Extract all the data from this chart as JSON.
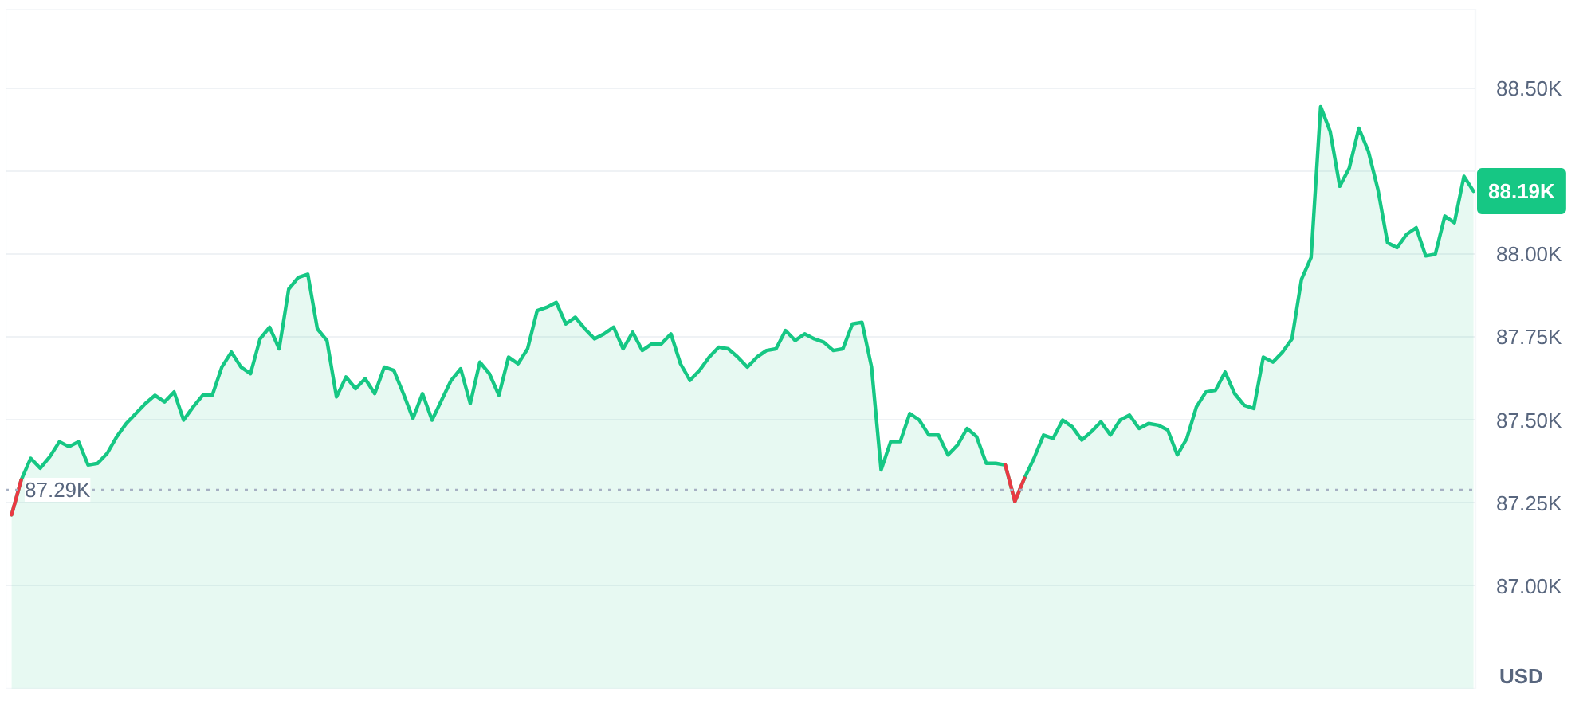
{
  "chart_data": {
    "type": "area",
    "categories": [
      null,
      null,
      null,
      null,
      null,
      null,
      null,
      null,
      null,
      null,
      null,
      null,
      null,
      null,
      null,
      null,
      null,
      null,
      null,
      null,
      null,
      null,
      null,
      null,
      null,
      null,
      null,
      null,
      null,
      null,
      null,
      null,
      null,
      null,
      null,
      null,
      null,
      null,
      null,
      null,
      null,
      null,
      null,
      null,
      null,
      null,
      null,
      null,
      null,
      null,
      null,
      null,
      null,
      null,
      null,
      null,
      null,
      null,
      null,
      null,
      null,
      null,
      null,
      null,
      null,
      null,
      null,
      null,
      null,
      null,
      null,
      null,
      null,
      null,
      null,
      null,
      null,
      null,
      null,
      null,
      null,
      null,
      null,
      null,
      null,
      null,
      null,
      null,
      null,
      null,
      null,
      null,
      null,
      null,
      null,
      null,
      null,
      null,
      null,
      null,
      null,
      null,
      null,
      null,
      null,
      null,
      null,
      null,
      null,
      null,
      null,
      null,
      null,
      null,
      null,
      null,
      null,
      null,
      null,
      null,
      null,
      null,
      null,
      null,
      null,
      null,
      null,
      null,
      null,
      null,
      null,
      null,
      null,
      null,
      null,
      null,
      null,
      null,
      null,
      null,
      null,
      null,
      null,
      null,
      null,
      null,
      null,
      null,
      null,
      null,
      null,
      null,
      null,
      null
    ],
    "series": [
      {
        "color": "#16c784",
        "values": [
          87215,
          87320,
          87385,
          87355,
          87390,
          87435,
          87420,
          87435,
          87365,
          87370,
          87400,
          87450,
          87490,
          87520,
          87550,
          87575,
          87555,
          87585,
          87500,
          87540,
          87575,
          87575,
          87660,
          87705,
          87660,
          87640,
          87745,
          87780,
          87715,
          87895,
          87930,
          87940,
          87775,
          87740,
          87570,
          87630,
          87595,
          87625,
          87580,
          87660,
          87650,
          87580,
          87505,
          87580,
          87500,
          87560,
          87620,
          87655,
          87550,
          87675,
          87640,
          87575,
          87690,
          87670,
          87715,
          87830,
          87840,
          87855,
          87790,
          87810,
          87775,
          87745,
          87760,
          87780,
          87715,
          87765,
          87710,
          87730,
          87730,
          87760,
          87670,
          87620,
          87650,
          87690,
          87720,
          87715,
          87690,
          87660,
          87690,
          87710,
          87715,
          87770,
          87740,
          87760,
          87745,
          87735,
          87710,
          87715,
          87790,
          87795,
          87660,
          87350,
          87435,
          87435,
          87520,
          87500,
          87455,
          87455,
          87395,
          87425,
          87475,
          87450,
          87370,
          87370,
          87365,
          87255,
          87325,
          87385,
          87455,
          87445,
          87500,
          87480,
          87440,
          87465,
          87495,
          87455,
          87500,
          87515,
          87475,
          87490,
          87485,
          87470,
          87395,
          87445,
          87540,
          87585,
          87590,
          87645,
          87580,
          87545,
          87535,
          87690,
          87675,
          87705,
          87745,
          87925,
          87990,
          88445,
          88370,
          88205,
          88260,
          88380,
          88310,
          88195,
          88035,
          88020,
          88060,
          88080,
          87995,
          88000,
          88115,
          88095,
          88235,
          88190
        ]
      },
      {
        "type": "line",
        "color": "#ea3943",
        "values": [
          87215,
          87320,
          null,
          null,
          null,
          null,
          null,
          null,
          null,
          null,
          null,
          null,
          null,
          null,
          null,
          null,
          null,
          null,
          null,
          null,
          null,
          null,
          null,
          null,
          null,
          null,
          null,
          null,
          null,
          null,
          null,
          null,
          null,
          null,
          null,
          null,
          null,
          null,
          null,
          null,
          null,
          null,
          null,
          null,
          null,
          null,
          null,
          null,
          null,
          null,
          null,
          null,
          null,
          null,
          null,
          null,
          null,
          null,
          null,
          null,
          null,
          null,
          null,
          null,
          null,
          null,
          null,
          null,
          null,
          null,
          null,
          null,
          null,
          null,
          null,
          null,
          null,
          null,
          null,
          null,
          null,
          null,
          null,
          null,
          null,
          null,
          null,
          null,
          null,
          null,
          null,
          null,
          null,
          null,
          null,
          null,
          null,
          null,
          null,
          null,
          null,
          null,
          null,
          null,
          87365,
          87255,
          87325,
          null,
          null,
          null,
          null,
          null,
          null,
          null,
          null,
          null,
          null,
          null,
          null,
          null,
          null,
          null,
          null,
          null,
          null,
          null,
          null,
          null,
          null,
          null,
          null,
          null,
          null,
          null,
          null,
          null,
          null,
          null,
          null,
          null,
          null,
          null,
          null,
          null,
          null,
          null,
          null,
          null,
          null,
          null,
          null,
          null,
          null,
          null
        ]
      }
    ],
    "ylabel": "USD",
    "ylim": [
      86690,
      88740
    ],
    "yticks": [
      {
        "value": 87000,
        "label": "87.00K"
      },
      {
        "value": 87250,
        "label": "87.25K"
      },
      {
        "value": 87500,
        "label": "87.50K"
      },
      {
        "value": 87750,
        "label": "87.75K"
      },
      {
        "value": 88000,
        "label": "88.00K"
      },
      {
        "value": 88250,
        "label": null
      },
      {
        "value": 88500,
        "label": "88.50K"
      }
    ],
    "ref_lines": [
      {
        "axis": "y",
        "value": 87290,
        "label": "87.29K",
        "line_style": "dotted",
        "color": "#a6b0c3"
      }
    ],
    "annotations": [
      "88.19K"
    ],
    "grid": "y",
    "tick_labels": "y"
  }
}
